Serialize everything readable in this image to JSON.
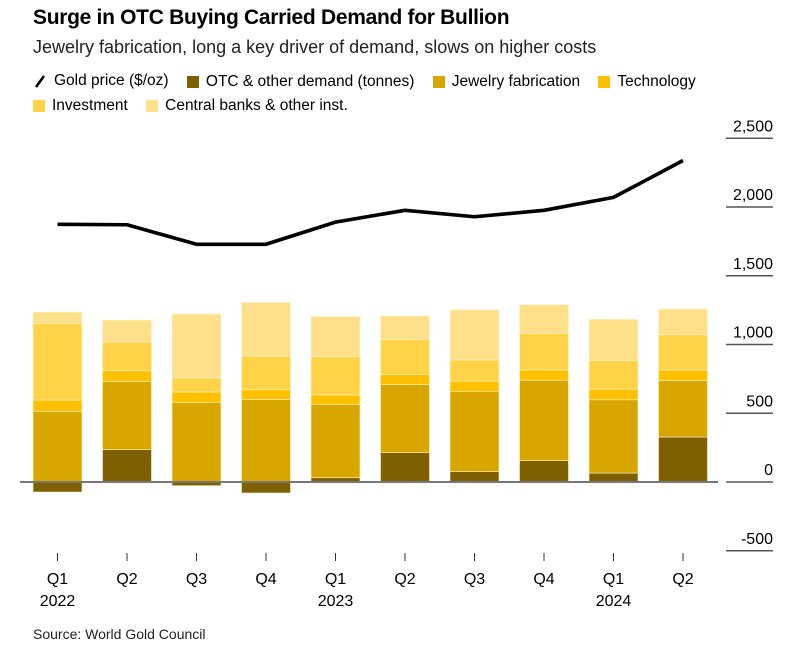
{
  "header": {
    "title": "Surge in OTC Buying Carried Demand for Bullion",
    "subtitle": "Jewelry fabrication, long a key driver of demand, slows on higher costs"
  },
  "legend": [
    {
      "label": "Gold price ($/oz)",
      "type": "line",
      "color": "#000000"
    },
    {
      "label": "OTC & other demand (tonnes)",
      "type": "box",
      "color": "#7f6000"
    },
    {
      "label": "Jewelry fabrication",
      "type": "box",
      "color": "#d9a600"
    },
    {
      "label": "Technology",
      "type": "box",
      "color": "#ffc000"
    },
    {
      "label": "Investment",
      "type": "box",
      "color": "#ffd347"
    },
    {
      "label": "Central banks & other inst.",
      "type": "box",
      "color": "#ffe08a"
    }
  ],
  "source": "Source: World Gold Council",
  "chart_data": {
    "type": "bar",
    "stacked": true,
    "title": "Surge in OTC Buying Carried Demand for Bullion",
    "subtitle": "Jewelry fabrication, long a key driver of demand, slows on higher costs",
    "categories": [
      "Q1 2022",
      "Q2 2022",
      "Q3 2022",
      "Q4 2022",
      "Q1 2023",
      "Q2 2023",
      "Q3 2023",
      "Q4 2023",
      "Q1 2024",
      "Q2 2024"
    ],
    "tick_labels": [
      {
        "quarter": "Q1",
        "year": "2022"
      },
      {
        "quarter": "Q2",
        "year": ""
      },
      {
        "quarter": "Q3",
        "year": ""
      },
      {
        "quarter": "Q4",
        "year": ""
      },
      {
        "quarter": "Q1",
        "year": "2023"
      },
      {
        "quarter": "Q2",
        "year": ""
      },
      {
        "quarter": "Q3",
        "year": ""
      },
      {
        "quarter": "Q4",
        "year": ""
      },
      {
        "quarter": "Q1",
        "year": "2024"
      },
      {
        "quarter": "Q2",
        "year": ""
      }
    ],
    "series": [
      {
        "name": "OTC & other demand (tonnes)",
        "color": "#7f6000",
        "values": [
          -73,
          235,
          -27,
          -80,
          31,
          213,
          75,
          155,
          65,
          327
        ]
      },
      {
        "name": "Jewelry fabrication",
        "color": "#d9a600",
        "values": [
          514,
          497,
          577,
          601,
          534,
          495,
          585,
          585,
          533,
          412
        ]
      },
      {
        "name": "Technology",
        "color": "#ffc000",
        "values": [
          82,
          77,
          78,
          70,
          68,
          73,
          73,
          75,
          78,
          75
        ]
      },
      {
        "name": "Investment",
        "color": "#ffd347",
        "values": [
          555,
          209,
          102,
          245,
          279,
          255,
          155,
          264,
          206,
          257
        ]
      },
      {
        "name": "Central banks & other inst.",
        "color": "#ffe08a",
        "values": [
          85,
          160,
          465,
          390,
          291,
          172,
          364,
          211,
          301,
          187
        ]
      }
    ],
    "line_series": {
      "name": "Gold price ($/oz)",
      "color": "#000000",
      "values": [
        1874,
        1871,
        1729,
        1729,
        1890,
        1976,
        1929,
        1976,
        2070,
        2338
      ]
    },
    "xlabel": "",
    "ylabel": "",
    "ylim": [
      -500,
      2500
    ],
    "yticks": [
      2500,
      2000,
      1500,
      1000,
      500,
      0,
      -500
    ],
    "ytick_labels": [
      "2,500",
      "2,000",
      "1,500",
      "1,000",
      "500",
      "0",
      "-500"
    ],
    "grid": false,
    "legend_position": "top-left"
  }
}
